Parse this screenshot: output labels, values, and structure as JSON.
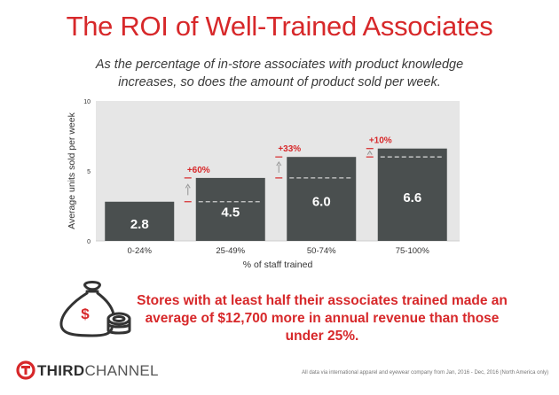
{
  "header": {
    "title": "The ROI of Well-Trained Associates",
    "subtitle": "As the percentage of in-store associates with product knowledge increases, so does the amount of product sold per week."
  },
  "chart_data": {
    "type": "bar",
    "title": "",
    "xlabel": "% of staff trained",
    "ylabel": "Average units sold per week",
    "categories": [
      "0-24%",
      "25-49%",
      "50-74%",
      "75-100%"
    ],
    "values": [
      2.8,
      4.5,
      6.0,
      6.6
    ],
    "value_labels": [
      "2.8",
      "4.5",
      "6.0",
      "6.6"
    ],
    "ylim": [
      0,
      10
    ],
    "yticks": [
      0,
      5,
      10
    ],
    "increase_labels": [
      "+60%",
      "+33%",
      "+10%"
    ],
    "grid": false,
    "colors": {
      "bar": "#4a4f4f",
      "plot_bg": "#e6e6e6",
      "accent": "#d7282a"
    }
  },
  "callout": {
    "text": "Stores with at least half their associates trained made an average of $12,700 more in annual revenue than those under 25%.",
    "icon": "money-bag-icon"
  },
  "footer": {
    "brand_part1": "THIRD",
    "brand_part2": "CHANNEL",
    "logo_icon": "thirdchannel-logo-icon",
    "note": "All data via international apparel and eyewear company from Jan, 2016 - Dec, 2016 (North America only)"
  }
}
